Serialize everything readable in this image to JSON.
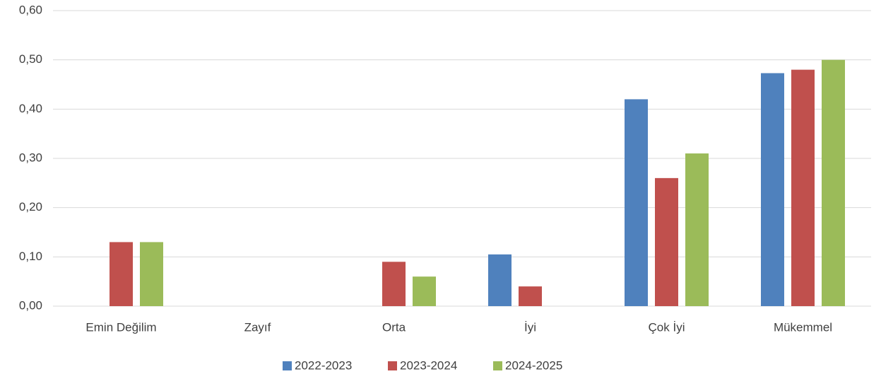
{
  "chart_data": {
    "type": "bar",
    "categories": [
      "Emin Değilim",
      "Zayıf",
      "Orta",
      "İyi",
      "Çok İyi",
      "Mükemmel"
    ],
    "series": [
      {
        "name": "2022-2023",
        "color": "#4f81bd",
        "values": [
          0,
          0,
          0,
          0.105,
          0.42,
          0.473
        ]
      },
      {
        "name": "2023-2024",
        "color": "#c0504d",
        "values": [
          0.13,
          0,
          0.09,
          0.04,
          0.26,
          0.48
        ]
      },
      {
        "name": "2024-2025",
        "color": "#9bbb59",
        "values": [
          0.13,
          0,
          0.06,
          0,
          0.31,
          0.5
        ]
      }
    ],
    "ylim": [
      0,
      0.6
    ],
    "yticks": [
      {
        "value": 0,
        "label": "0,00"
      },
      {
        "value": 0.1,
        "label": "0,10"
      },
      {
        "value": 0.2,
        "label": "0,20"
      },
      {
        "value": 0.3,
        "label": "0,30"
      },
      {
        "value": 0.4,
        "label": "0,40"
      },
      {
        "value": 0.5,
        "label": "0,50"
      },
      {
        "value": 0.6,
        "label": "0,60"
      }
    ],
    "grid": true,
    "legend": "bottom"
  }
}
